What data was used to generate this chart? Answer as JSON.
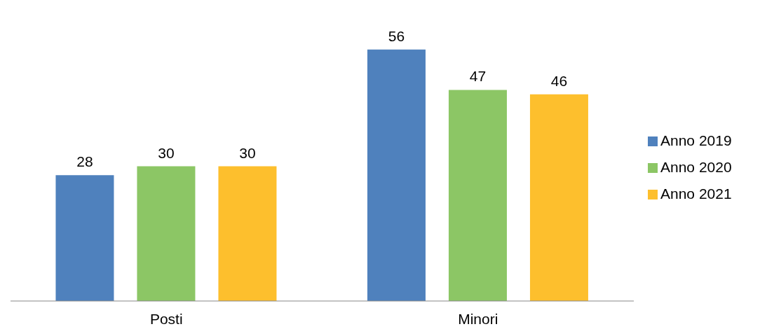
{
  "chart_data": {
    "type": "bar",
    "categories": [
      "Posti",
      "Minori"
    ],
    "series": [
      {
        "name": "Anno 2019",
        "color": "#4f81bd",
        "values": [
          28,
          56
        ]
      },
      {
        "name": "Anno 2020",
        "color": "#8cc665",
        "values": [
          30,
          47
        ]
      },
      {
        "name": "Anno 2021",
        "color": "#fdbf2d",
        "values": [
          30,
          46
        ]
      }
    ],
    "data_labels": true,
    "legend": "right",
    "grid": false
  }
}
